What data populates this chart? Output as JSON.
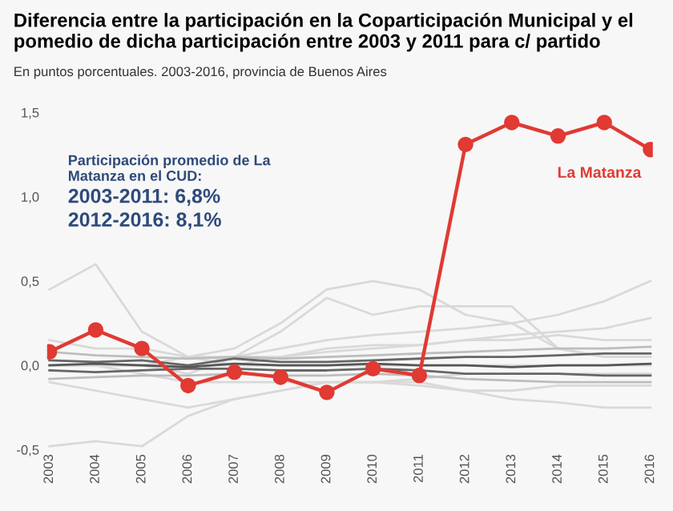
{
  "chart_data": {
    "type": "line",
    "title": "Diferencia entre la participación en la Coparticipación Municipal y el pomedio de dicha participación entre 2003 y 2011 para c/ partido",
    "subtitle": "En puntos porcentuales. 2003-2016, provincia de Buenos Aires",
    "annotations": [
      "Participación promedio de La Matanza en el CUD:",
      "2003-2011: 6,8%",
      "2012-2016: 8,1%"
    ],
    "categories": [
      "2003",
      "2004",
      "2005",
      "2006",
      "2007",
      "2008",
      "2009",
      "2010",
      "2011",
      "2012",
      "2013",
      "2014",
      "2015",
      "2016"
    ],
    "ylim": [
      -0.5,
      1.5
    ],
    "yticks": [
      {
        "value": -0.5,
        "label": "-0,5"
      },
      {
        "value": 0.0,
        "label": "0,0"
      },
      {
        "value": 0.5,
        "label": "0,5"
      },
      {
        "value": 1.0,
        "label": "1,0"
      },
      {
        "value": 1.5,
        "label": "1,5"
      }
    ],
    "grid": false,
    "legend": false,
    "series": [
      {
        "color": "#d9d9d9",
        "values": [
          0.45,
          0.6,
          0.2,
          0.05,
          0.0,
          0.0,
          0.0,
          0.0,
          0.0,
          0.0,
          0.0,
          0.0,
          0.0,
          0.0
        ]
      },
      {
        "color": "#d9d9d9",
        "values": [
          0.0,
          0.0,
          0.0,
          0.05,
          0.1,
          0.25,
          0.45,
          0.5,
          0.45,
          0.3,
          0.25,
          0.1,
          0.05,
          0.05
        ]
      },
      {
        "color": "#d9d9d9",
        "values": [
          0.0,
          0.0,
          0.0,
          -0.05,
          0.05,
          0.2,
          0.4,
          0.3,
          0.35,
          0.35,
          0.35,
          0.1,
          0.05,
          0.05
        ]
      },
      {
        "color": "#d9d9d9",
        "values": [
          0.0,
          0.0,
          0.0,
          0.0,
          0.05,
          0.1,
          0.15,
          0.18,
          0.2,
          0.22,
          0.25,
          0.3,
          0.38,
          0.5
        ]
      },
      {
        "color": "#d9d9d9",
        "values": [
          0.0,
          0.0,
          0.0,
          0.0,
          0.0,
          0.05,
          0.08,
          0.1,
          0.12,
          0.15,
          0.18,
          0.2,
          0.22,
          0.28
        ]
      },
      {
        "color": "#d9d9d9",
        "values": [
          -0.48,
          -0.45,
          -0.48,
          -0.3,
          -0.2,
          -0.15,
          -0.1,
          -0.1,
          -0.08,
          -0.05,
          -0.05,
          -0.05,
          -0.05,
          -0.05
        ]
      },
      {
        "color": "#d9d9d9",
        "values": [
          0.0,
          0.0,
          -0.05,
          -0.1,
          -0.1,
          -0.1,
          -0.1,
          -0.1,
          -0.1,
          -0.15,
          -0.2,
          -0.22,
          -0.25,
          -0.25
        ]
      },
      {
        "color": "#d9d9d9",
        "values": [
          0.15,
          0.1,
          0.1,
          0.05,
          0.05,
          0.05,
          0.1,
          0.12,
          0.12,
          0.15,
          0.15,
          0.18,
          0.15,
          0.15
        ]
      },
      {
        "color": "#d9d9d9",
        "values": [
          -0.1,
          -0.15,
          -0.2,
          -0.25,
          -0.2,
          -0.15,
          -0.1,
          -0.1,
          -0.12,
          -0.15,
          -0.15,
          -0.12,
          -0.12,
          -0.12
        ]
      },
      {
        "color": "#bdbdbd",
        "values": [
          0.08,
          0.06,
          0.05,
          0.04,
          0.05,
          0.04,
          0.05,
          0.06,
          0.07,
          0.08,
          0.09,
          0.1,
          0.1,
          0.11
        ]
      },
      {
        "color": "#bdbdbd",
        "values": [
          -0.08,
          -0.07,
          -0.06,
          -0.06,
          -0.05,
          -0.06,
          -0.06,
          -0.05,
          -0.06,
          -0.08,
          -0.09,
          -0.1,
          -0.1,
          -0.1
        ]
      },
      {
        "color": "#666666",
        "values": [
          0.03,
          0.02,
          0.03,
          0.0,
          0.04,
          0.02,
          0.02,
          0.03,
          0.04,
          0.05,
          0.05,
          0.06,
          0.07,
          0.07
        ]
      },
      {
        "color": "#666666",
        "values": [
          -0.03,
          -0.04,
          -0.03,
          -0.02,
          -0.02,
          -0.03,
          -0.03,
          -0.02,
          -0.03,
          -0.05,
          -0.05,
          -0.05,
          -0.06,
          -0.06
        ]
      },
      {
        "color": "#555555",
        "values": [
          0.0,
          0.01,
          0.0,
          -0.01,
          0.01,
          0.0,
          0.0,
          0.01,
          0.0,
          0.0,
          -0.01,
          0.0,
          0.0,
          0.01
        ]
      },
      {
        "name": "La Matanza",
        "color": "#e03a33",
        "marker": "circle",
        "values": [
          0.08,
          0.21,
          0.1,
          -0.12,
          -0.04,
          -0.07,
          -0.16,
          -0.02,
          -0.06,
          1.31,
          1.44,
          1.36,
          1.44,
          1.28
        ]
      }
    ]
  }
}
